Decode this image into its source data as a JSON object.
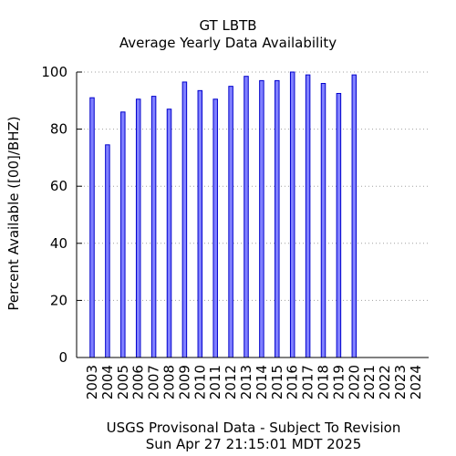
{
  "chart_data": {
    "type": "bar",
    "title": "GT LBTB",
    "subtitle": "Average Yearly Data Availability",
    "ylabel": "Percent Available ([00]/BHZ)",
    "xlabel": "",
    "ylim": [
      0,
      100
    ],
    "yticks": [
      0,
      20,
      40,
      60,
      80,
      100
    ],
    "grid": "horizontal dotted",
    "categories": [
      "2003",
      "2004",
      "2005",
      "2006",
      "2007",
      "2008",
      "2009",
      "2010",
      "2011",
      "2012",
      "2013",
      "2014",
      "2015",
      "2016",
      "2017",
      "2018",
      "2019",
      "2020",
      "2021",
      "2022",
      "2023",
      "2024"
    ],
    "values": [
      91,
      74.5,
      86,
      90.5,
      91.5,
      87,
      96.5,
      93.5,
      90.5,
      95,
      98.5,
      97,
      97,
      100,
      99,
      96,
      92.5,
      99,
      null,
      null,
      null,
      null
    ],
    "colors": {
      "bar_fill": "#8080ff",
      "bar_stroke": "#0000cc",
      "grid": "#a0a0a0"
    }
  },
  "footer": {
    "line1": "USGS Provisonal Data - Subject To Revision",
    "line2": "Sun Apr 27 21:15:01 MDT 2025"
  }
}
